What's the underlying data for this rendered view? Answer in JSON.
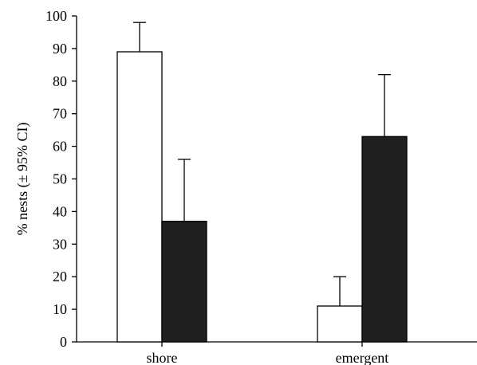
{
  "chart_data": {
    "type": "bar",
    "title": "",
    "xlabel": "",
    "ylabel": "% nests (± 95% CI)",
    "ylim": [
      0,
      100
    ],
    "yticks": [
      0,
      10,
      20,
      30,
      40,
      50,
      60,
      70,
      80,
      90,
      100
    ],
    "categories": [
      "shore",
      "emergent"
    ],
    "series": [
      {
        "color": "#ffffff",
        "values": [
          89,
          11
        ],
        "ci_upper": [
          98,
          20
        ]
      },
      {
        "color": "#1f1f1f",
        "values": [
          37,
          63
        ],
        "ci_upper": [
          56,
          82
        ]
      }
    ],
    "grid": false,
    "legend": "none"
  }
}
